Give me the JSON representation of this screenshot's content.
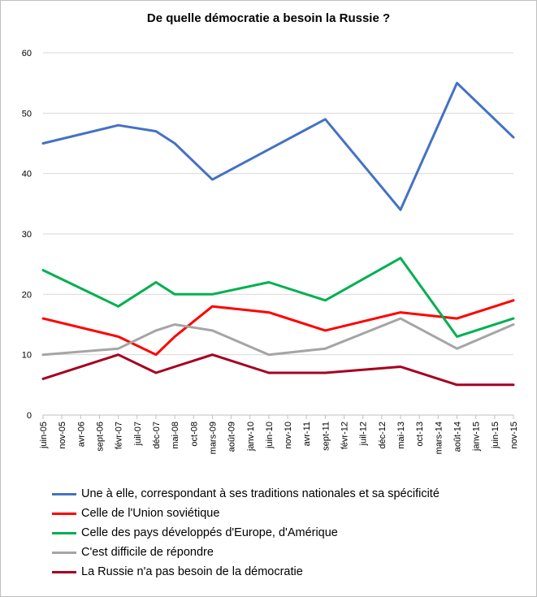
{
  "chart_data": {
    "type": "line",
    "title": "De quelle démocratie a besoin la Russie ?",
    "xlabel": "",
    "ylabel": "",
    "ylim": [
      0,
      60
    ],
    "yticks": [
      0,
      10,
      20,
      30,
      40,
      50,
      60
    ],
    "grid": "horizontal",
    "legend_position": "bottom",
    "categories": [
      "juin-05",
      "nov-05",
      "avr-06",
      "sept-06",
      "févr-07",
      "juil-07",
      "déc-07",
      "mai-08",
      "oct-08",
      "mars-09",
      "août-09",
      "janv-10",
      "juin-10",
      "nov-10",
      "avr-11",
      "sept-11",
      "févr-12",
      "juil-12",
      "déc-12",
      "mai-13",
      "oct-13",
      "mars-14",
      "août-14",
      "janv-15",
      "juin-15",
      "nov-15"
    ],
    "series": [
      {
        "name": "Une à elle, correspondant à ses traditions nationales et sa spécificité",
        "color": "#4472c4",
        "points": [
          [
            0,
            45
          ],
          [
            4,
            48
          ],
          [
            6,
            47
          ],
          [
            7,
            45
          ],
          [
            9,
            39
          ],
          [
            12,
            44
          ],
          [
            15,
            49
          ],
          [
            19,
            34
          ],
          [
            22,
            55
          ],
          [
            25,
            46
          ]
        ]
      },
      {
        "name": "Celle de l'Union soviétique",
        "color": "#ff0000",
        "points": [
          [
            0,
            16
          ],
          [
            4,
            13
          ],
          [
            6,
            10
          ],
          [
            7,
            13
          ],
          [
            9,
            18
          ],
          [
            12,
            17
          ],
          [
            15,
            14
          ],
          [
            19,
            17
          ],
          [
            22,
            16
          ],
          [
            25,
            19
          ]
        ]
      },
      {
        "name": "Celle des pays développés d'Europe, d'Amérique",
        "color": "#00b050",
        "points": [
          [
            0,
            24
          ],
          [
            4,
            18
          ],
          [
            6,
            22
          ],
          [
            7,
            20
          ],
          [
            9,
            20
          ],
          [
            12,
            22
          ],
          [
            15,
            19
          ],
          [
            19,
            26
          ],
          [
            22,
            13
          ],
          [
            25,
            16
          ]
        ]
      },
      {
        "name": "C'est difficile de répondre",
        "color": "#a5a5a5",
        "points": [
          [
            0,
            10
          ],
          [
            4,
            11
          ],
          [
            6,
            14
          ],
          [
            7,
            15
          ],
          [
            9,
            14
          ],
          [
            12,
            10
          ],
          [
            15,
            11
          ],
          [
            19,
            16
          ],
          [
            22,
            11
          ],
          [
            25,
            15
          ]
        ]
      },
      {
        "name": "La Russie n'a pas besoin de la démocratie",
        "color": "#a50021",
        "points": [
          [
            0,
            6
          ],
          [
            4,
            10
          ],
          [
            6,
            7
          ],
          [
            7,
            8
          ],
          [
            9,
            10
          ],
          [
            12,
            7
          ],
          [
            15,
            7
          ],
          [
            19,
            8
          ],
          [
            22,
            5
          ],
          [
            25,
            5
          ]
        ]
      }
    ]
  }
}
